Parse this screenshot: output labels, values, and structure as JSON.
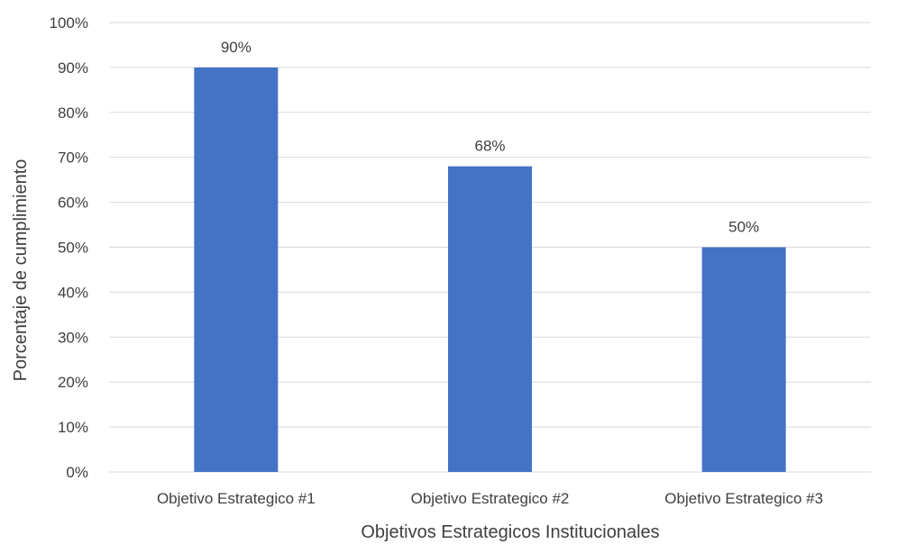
{
  "chart_data": {
    "type": "bar",
    "categories": [
      "Objetivo Estrategico #1",
      "Objetivo Estrategico #2",
      "Objetivo Estrategico #3"
    ],
    "values": [
      90,
      68,
      50
    ],
    "data_labels": [
      "90%",
      "68%",
      "50%"
    ],
    "title": "",
    "xlabel": "Objetivos Estrategicos Institucionales",
    "ylabel": "Porcentaje de cumplimiento",
    "ylim": [
      0,
      100
    ],
    "yticks": [
      0,
      10,
      20,
      30,
      40,
      50,
      60,
      70,
      80,
      90,
      100
    ],
    "ytick_labels": [
      "0%",
      "10%",
      "20%",
      "30%",
      "40%",
      "50%",
      "60%",
      "70%",
      "80%",
      "90%",
      "100%"
    ],
    "grid": true,
    "legend": "none",
    "colors": {
      "bar": "#4472c4",
      "grid": "#d9d9d9",
      "text": "#404040"
    }
  }
}
